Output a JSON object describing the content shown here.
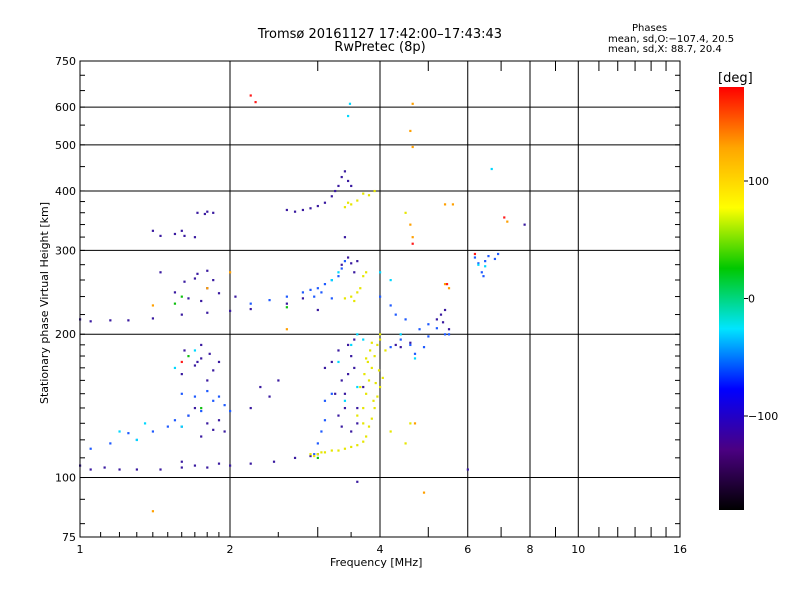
{
  "chart_data": {
    "type": "scatter",
    "title": "Tromsø 20161127 17:42:00–17:43:43",
    "subtitle": "RwPretec (8p)",
    "xlabel": "Frequency [MHz]",
    "ylabel": "Stationary phase Virtual Height [km]",
    "x_scale": "log",
    "y_scale": "log",
    "xlim": [
      1,
      16
    ],
    "ylim": [
      75,
      750
    ],
    "x_ticks": [
      "1",
      "2",
      "4",
      "6",
      "8",
      "10",
      "16"
    ],
    "y_ticks": [
      "750",
      "600",
      "500",
      "400",
      "300",
      "200",
      "100",
      "75"
    ],
    "grid": true,
    "phases": {
      "heading": "Phases",
      "o_mode": "mean, sd,O:−107.4, 20.5",
      "x_mode": "mean, sd,X:  88.7, 20.4"
    },
    "colorbar": {
      "label": "[deg]",
      "ticks": [
        "100",
        "0",
        "−100"
      ],
      "range": [
        -180,
        180
      ],
      "colors": [
        "#000000",
        "#4b0082",
        "#0000ff",
        "#00e5ff",
        "#00c800",
        "#ffff00",
        "#ffa500",
        "#ff0000"
      ]
    },
    "series": [
      {
        "points": [
          [
            1.0,
            106
          ],
          [
            1.05,
            104
          ],
          [
            1.12,
            105
          ],
          [
            1.2,
            104
          ],
          [
            1.3,
            104
          ],
          [
            1.45,
            104
          ],
          [
            1.6,
            105
          ],
          [
            1.8,
            105
          ],
          [
            2.0,
            106
          ],
          [
            2.2,
            107
          ],
          [
            2.45,
            108
          ],
          [
            2.7,
            110
          ],
          [
            2.9,
            111
          ],
          [
            3.0,
            112
          ],
          [
            1.0,
            215
          ],
          [
            1.05,
            213
          ],
          [
            1.15,
            214
          ],
          [
            1.25,
            214
          ],
          [
            1.4,
            216
          ],
          [
            1.6,
            220
          ],
          [
            1.8,
            222
          ],
          [
            2.0,
            224
          ],
          [
            2.2,
            226
          ],
          [
            1.4,
            330
          ],
          [
            1.45,
            322
          ],
          [
            1.55,
            325
          ],
          [
            1.6,
            330
          ],
          [
            1.62,
            322
          ],
          [
            1.7,
            320
          ],
          [
            1.72,
            360
          ],
          [
            1.78,
            358
          ],
          [
            1.8,
            362
          ],
          [
            1.85,
            360
          ],
          [
            1.6,
            165
          ],
          [
            1.7,
            172
          ],
          [
            1.75,
            178
          ],
          [
            1.8,
            160
          ],
          [
            1.85,
            168
          ],
          [
            1.9,
            175
          ],
          [
            1.62,
            185
          ],
          [
            1.72,
            175
          ],
          [
            1.75,
            190
          ],
          [
            1.82,
            182
          ],
          [
            1.6,
            128
          ],
          [
            1.65,
            135
          ],
          [
            1.7,
            140
          ],
          [
            1.75,
            122
          ],
          [
            1.8,
            130
          ],
          [
            1.85,
            126
          ],
          [
            1.9,
            132
          ],
          [
            1.95,
            125
          ],
          [
            1.55,
            245
          ],
          [
            1.62,
            258
          ],
          [
            1.7,
            262
          ],
          [
            1.8,
            250
          ],
          [
            1.85,
            260
          ],
          [
            1.65,
            238
          ],
          [
            1.75,
            235
          ],
          [
            1.9,
            244
          ],
          [
            2.05,
            240
          ],
          [
            1.45,
            270
          ],
          [
            1.72,
            268
          ],
          [
            1.8,
            272
          ],
          [
            2.6,
            365
          ],
          [
            2.7,
            362
          ],
          [
            2.8,
            365
          ],
          [
            2.9,
            368
          ],
          [
            3.0,
            372
          ],
          [
            3.1,
            378
          ],
          [
            3.2,
            390
          ],
          [
            3.25,
            400
          ],
          [
            3.3,
            410
          ],
          [
            3.35,
            428
          ],
          [
            3.4,
            440
          ],
          [
            3.45,
            420
          ],
          [
            3.5,
            410
          ],
          [
            3.1,
            170
          ],
          [
            3.2,
            175
          ],
          [
            3.3,
            185
          ],
          [
            3.35,
            160
          ],
          [
            3.4,
            150
          ],
          [
            3.45,
            165
          ],
          [
            3.5,
            180
          ],
          [
            3.55,
            170
          ],
          [
            3.6,
            140
          ],
          [
            3.7,
            155
          ],
          [
            3.3,
            135
          ],
          [
            3.35,
            128
          ],
          [
            3.4,
            140
          ],
          [
            3.5,
            125
          ],
          [
            3.6,
            130
          ],
          [
            3.25,
            150
          ],
          [
            3.45,
            190
          ],
          [
            3.55,
            195
          ],
          [
            3.35,
            280
          ],
          [
            3.45,
            290
          ],
          [
            3.5,
            282
          ],
          [
            3.55,
            270
          ],
          [
            3.6,
            285
          ],
          [
            3.4,
            320
          ],
          [
            2.2,
            140
          ],
          [
            2.3,
            155
          ],
          [
            2.4,
            148
          ],
          [
            2.5,
            160
          ],
          [
            4.3,
            190
          ],
          [
            4.4,
            188
          ],
          [
            4.6,
            192
          ],
          [
            5.2,
            215
          ],
          [
            5.3,
            220
          ],
          [
            5.4,
            225
          ],
          [
            5.35,
            212
          ],
          [
            5.5,
            205
          ],
          [
            6.0,
            104
          ],
          [
            7.8,
            340
          ],
          [
            3.6,
            98
          ],
          [
            1.6,
            108
          ],
          [
            1.7,
            106
          ],
          [
            1.9,
            107
          ],
          [
            3.0,
            225
          ],
          [
            2.6,
            232
          ],
          [
            2.8,
            238
          ]
        ],
        "color": "#3a1aa0"
      },
      {
        "points": [
          [
            1.05,
            115
          ],
          [
            1.15,
            118
          ],
          [
            1.25,
            124
          ],
          [
            1.3,
            120
          ],
          [
            1.4,
            125
          ],
          [
            1.5,
            128
          ],
          [
            1.55,
            132
          ],
          [
            1.65,
            135
          ],
          [
            1.75,
            138
          ],
          [
            1.85,
            145
          ],
          [
            1.95,
            142
          ],
          [
            2.0,
            138
          ],
          [
            1.6,
            150
          ],
          [
            1.7,
            148
          ],
          [
            1.8,
            152
          ],
          [
            1.9,
            148
          ],
          [
            2.2,
            232
          ],
          [
            2.4,
            236
          ],
          [
            2.6,
            240
          ],
          [
            2.8,
            245
          ],
          [
            2.9,
            248
          ],
          [
            3.0,
            250
          ],
          [
            3.1,
            255
          ],
          [
            3.2,
            260
          ],
          [
            3.3,
            265
          ],
          [
            3.35,
            275
          ],
          [
            3.4,
            285
          ],
          [
            2.95,
            112
          ],
          [
            3.0,
            118
          ],
          [
            3.05,
            125
          ],
          [
            3.1,
            132
          ],
          [
            3.1,
            145
          ],
          [
            3.2,
            150
          ],
          [
            4.2,
            188
          ],
          [
            4.4,
            195
          ],
          [
            4.6,
            190
          ],
          [
            4.7,
            182
          ],
          [
            4.9,
            188
          ],
          [
            5.0,
            198
          ],
          [
            5.2,
            206
          ],
          [
            5.4,
            200
          ],
          [
            5.5,
            200
          ],
          [
            6.2,
            290
          ],
          [
            6.3,
            282
          ],
          [
            6.4,
            270
          ],
          [
            6.5,
            285
          ],
          [
            6.6,
            292
          ],
          [
            6.8,
            288
          ],
          [
            6.9,
            295
          ],
          [
            6.45,
            265
          ],
          [
            4.0,
            240
          ],
          [
            4.2,
            230
          ],
          [
            4.3,
            220
          ],
          [
            4.5,
            215
          ],
          [
            4.8,
            205
          ],
          [
            5.0,
            210
          ],
          [
            2.95,
            240
          ],
          [
            3.05,
            245
          ],
          [
            3.2,
            238
          ]
        ],
        "color": "#1e5aff"
      },
      {
        "points": [
          [
            1.3,
            120
          ],
          [
            1.6,
            128
          ],
          [
            1.55,
            170
          ],
          [
            1.7,
            185
          ],
          [
            1.2,
            125
          ],
          [
            1.35,
            130
          ],
          [
            3.3,
            175
          ],
          [
            3.5,
            190
          ],
          [
            3.6,
            155
          ],
          [
            3.4,
            145
          ],
          [
            6.3,
            280
          ],
          [
            6.5,
            278
          ],
          [
            6.7,
            445
          ],
          [
            4.4,
            200
          ],
          [
            4.7,
            178
          ],
          [
            3.2,
            260
          ],
          [
            3.3,
            270
          ],
          [
            3.45,
            575
          ],
          [
            3.48,
            610
          ],
          [
            4.0,
            270
          ],
          [
            4.2,
            260
          ],
          [
            3.6,
            200
          ],
          [
            3.7,
            195
          ]
        ],
        "color": "#00d8ff"
      },
      {
        "points": [
          [
            2.9,
            112
          ],
          [
            2.95,
            111
          ],
          [
            3.0,
            112
          ],
          [
            3.05,
            113
          ],
          [
            3.1,
            113
          ],
          [
            3.2,
            114
          ],
          [
            3.3,
            114
          ],
          [
            3.4,
            115
          ],
          [
            3.5,
            116
          ],
          [
            3.6,
            117
          ],
          [
            3.7,
            119
          ],
          [
            3.75,
            122
          ],
          [
            3.8,
            128
          ],
          [
            3.85,
            133
          ],
          [
            3.9,
            140
          ],
          [
            3.95,
            148
          ],
          [
            4.0,
            155
          ],
          [
            4.05,
            162
          ],
          [
            3.7,
            140
          ],
          [
            3.75,
            150
          ],
          [
            3.8,
            160
          ],
          [
            3.85,
            170
          ],
          [
            3.9,
            180
          ],
          [
            3.95,
            190
          ],
          [
            3.65,
            155
          ],
          [
            3.72,
            165
          ],
          [
            3.78,
            175
          ],
          [
            3.82,
            185
          ],
          [
            3.88,
            145
          ],
          [
            3.92,
            158
          ],
          [
            3.98,
            168
          ],
          [
            3.6,
            135
          ],
          [
            3.7,
            130
          ],
          [
            3.75,
            178
          ],
          [
            3.85,
            192
          ],
          [
            3.5,
            240
          ],
          [
            3.6,
            245
          ],
          [
            3.65,
            250
          ],
          [
            3.7,
            265
          ],
          [
            3.75,
            270
          ],
          [
            3.4,
            238
          ],
          [
            3.55,
            235
          ],
          [
            3.5,
            375
          ],
          [
            3.6,
            382
          ],
          [
            3.7,
            395
          ],
          [
            3.8,
            392
          ],
          [
            3.9,
            400
          ],
          [
            3.4,
            370
          ],
          [
            3.45,
            378
          ],
          [
            4.0,
            200
          ],
          [
            4.1,
            185
          ],
          [
            4.5,
            118
          ],
          [
            4.6,
            130
          ],
          [
            4.2,
            125
          ],
          [
            4.5,
            360
          ],
          [
            4.0,
            195
          ]
        ],
        "color": "#e6e600"
      },
      {
        "points": [
          [
            4.6,
            535
          ],
          [
            4.65,
            610
          ],
          [
            4.6,
            340
          ],
          [
            4.65,
            320
          ],
          [
            5.4,
            375
          ],
          [
            5.6,
            375
          ],
          [
            7.2,
            345
          ],
          [
            1.4,
            85
          ],
          [
            4.9,
            93
          ],
          [
            2.6,
            205
          ],
          [
            5.4,
            255
          ],
          [
            5.5,
            250
          ],
          [
            4.7,
            130
          ],
          [
            1.8,
            250
          ],
          [
            2.0,
            270
          ],
          [
            4.65,
            495
          ],
          [
            1.4,
            230
          ]
        ],
        "color": "#ffa000"
      },
      {
        "points": [
          [
            2.2,
            635
          ],
          [
            2.25,
            615
          ],
          [
            4.65,
            310
          ],
          [
            5.45,
            255
          ],
          [
            6.2,
            295
          ],
          [
            7.1,
            352
          ],
          [
            1.6,
            175
          ]
        ],
        "color": "#ff1a1a"
      },
      {
        "points": [
          [
            1.6,
            240
          ],
          [
            1.65,
            180
          ],
          [
            1.55,
            232
          ],
          [
            1.75,
            140
          ],
          [
            2.6,
            228
          ],
          [
            3.0,
            110
          ]
        ],
        "color": "#10c010"
      }
    ]
  }
}
